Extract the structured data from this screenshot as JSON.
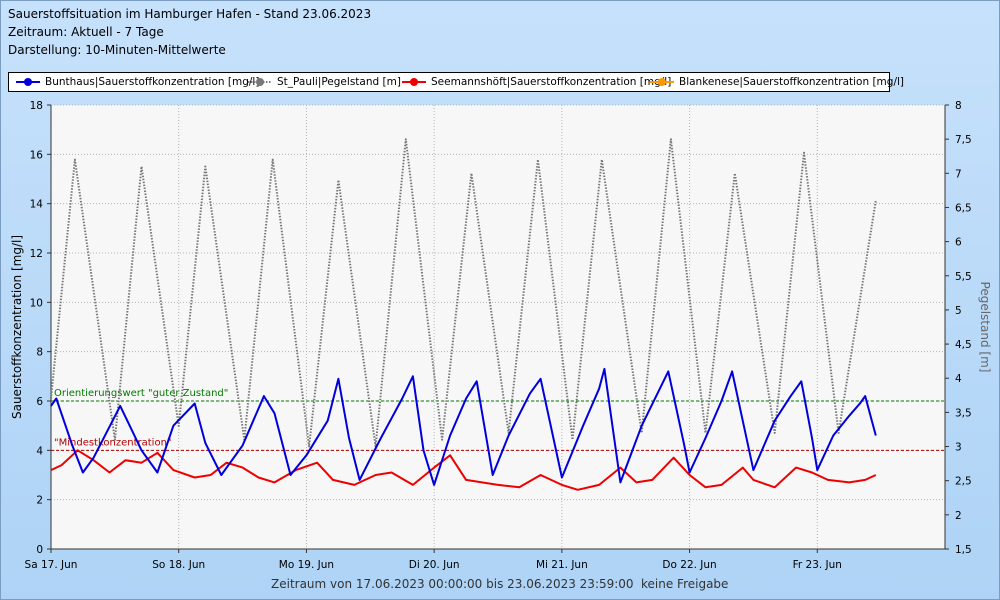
{
  "header": {
    "title": "Sauerstoffsituation im Hamburger Hafen - Stand 23.06.2023",
    "period": "Zeitraum: Aktuell - 7 Tage",
    "display": "Darstellung: 10-Minuten-Mittelwerte"
  },
  "footer": {
    "range": "Zeitraum von 17.06.2023 00:00:00 bis 23.06.2023 23:59:00",
    "release": "keine Freigabe"
  },
  "chart_data": {
    "type": "line",
    "xlabel": "",
    "ylabel": "Sauerstoffkonzentration [mg/l]",
    "y2label": "Pegelstand [m]",
    "ylim": [
      0,
      18
    ],
    "y2lim": [
      1.5,
      8
    ],
    "xlim": [
      "2023-06-17",
      "2023-06-24"
    ],
    "yticks": [
      "0",
      "2",
      "4",
      "6",
      "8",
      "10",
      "12",
      "14",
      "16",
      "18"
    ],
    "y2ticks": [
      "1,5",
      "2",
      "2,5",
      "3",
      "3,5",
      "4",
      "4,5",
      "5",
      "5,5",
      "6",
      "6,5",
      "7",
      "7,5",
      "8"
    ],
    "xticks": [
      {
        "x": "2023-06-17",
        "label": "Sa 17. Jun"
      },
      {
        "x": "2023-06-18",
        "label": "So 18. Jun"
      },
      {
        "x": "2023-06-19",
        "label": "Mo 19. Jun"
      },
      {
        "x": "2023-06-20",
        "label": "Di 20. Jun"
      },
      {
        "x": "2023-06-21",
        "label": "Mi 21. Jun"
      },
      {
        "x": "2023-06-22",
        "label": "Do 22. Jun"
      },
      {
        "x": "2023-06-23",
        "label": "Fr 23. Jun"
      }
    ],
    "grid": true,
    "legend_position": "top",
    "reference_lines": [
      {
        "label": "Orientierungswert \"guter Zustand\"",
        "y": 6,
        "color": "#007a00"
      },
      {
        "label": "\"Mindestkonzentration\"",
        "y": 4,
        "color": "#b00000"
      }
    ],
    "series": [
      {
        "name": "Bunthaus|Sauerstoffkonzentration [mg/l]",
        "axis": "left",
        "color": "#0000dd",
        "marker": "circle",
        "style": "solid",
        "points": [
          [
            "2023-06-17 00:00",
            5.8
          ],
          [
            "2023-06-17 01:00",
            6.1
          ],
          [
            "2023-06-17 04:00",
            4.2
          ],
          [
            "2023-06-17 06:00",
            3.1
          ],
          [
            "2023-06-17 08:00",
            3.7
          ],
          [
            "2023-06-17 13:00",
            5.8
          ],
          [
            "2023-06-17 17:00",
            4.0
          ],
          [
            "2023-06-17 20:00",
            3.1
          ],
          [
            "2023-06-17 23:00",
            5.0
          ],
          [
            "2023-06-18 03:00",
            5.9
          ],
          [
            "2023-06-18 05:00",
            4.3
          ],
          [
            "2023-06-18 08:00",
            3.0
          ],
          [
            "2023-06-18 12:00",
            4.2
          ],
          [
            "2023-06-18 16:00",
            6.2
          ],
          [
            "2023-06-18 18:00",
            5.5
          ],
          [
            "2023-06-18 21:00",
            3.0
          ],
          [
            "2023-06-19 00:00",
            3.8
          ],
          [
            "2023-06-19 04:00",
            5.2
          ],
          [
            "2023-06-19 06:00",
            6.9
          ],
          [
            "2023-06-19 08:00",
            4.5
          ],
          [
            "2023-06-19 10:00",
            2.8
          ],
          [
            "2023-06-19 14:00",
            4.5
          ],
          [
            "2023-06-19 18:00",
            6.1
          ],
          [
            "2023-06-19 20:00",
            7.0
          ],
          [
            "2023-06-19 22:00",
            4.0
          ],
          [
            "2023-06-20 00:00",
            2.6
          ],
          [
            "2023-06-20 03:00",
            4.6
          ],
          [
            "2023-06-20 06:00",
            6.1
          ],
          [
            "2023-06-20 08:00",
            6.8
          ],
          [
            "2023-06-20 11:00",
            3.0
          ],
          [
            "2023-06-20 14:00",
            4.6
          ],
          [
            "2023-06-20 18:00",
            6.3
          ],
          [
            "2023-06-20 20:00",
            6.9
          ],
          [
            "2023-06-21 00:00",
            2.9
          ],
          [
            "2023-06-21 04:00",
            5.0
          ],
          [
            "2023-06-21 07:00",
            6.5
          ],
          [
            "2023-06-21 08:00",
            7.3
          ],
          [
            "2023-06-21 11:00",
            2.7
          ],
          [
            "2023-06-21 15:00",
            5.0
          ],
          [
            "2023-06-21 20:00",
            7.2
          ],
          [
            "2023-06-21 23:00",
            4.2
          ],
          [
            "2023-06-22 00:00",
            3.1
          ],
          [
            "2023-06-22 03:00",
            4.5
          ],
          [
            "2023-06-22 06:00",
            6.0
          ],
          [
            "2023-06-22 08:00",
            7.2
          ],
          [
            "2023-06-22 12:00",
            3.2
          ],
          [
            "2023-06-22 16:00",
            5.2
          ],
          [
            "2023-06-22 19:00",
            6.2
          ],
          [
            "2023-06-22 21:00",
            6.8
          ],
          [
            "2023-06-22 23:00",
            4.5
          ],
          [
            "2023-06-23 00:00",
            3.2
          ],
          [
            "2023-06-23 03:00",
            4.6
          ],
          [
            "2023-06-23 06:00",
            5.4
          ],
          [
            "2023-06-23 08:00",
            5.9
          ],
          [
            "2023-06-23 09:00",
            6.2
          ],
          [
            "2023-06-23 11:00",
            4.6
          ]
        ]
      },
      {
        "name": "St_Pauli|Pegelstand [m]",
        "axis": "right",
        "color": "#777777",
        "marker": "circle",
        "style": "dotted",
        "points": [
          [
            "2023-06-17 00:00",
            3.7
          ],
          [
            "2023-06-17 04:30",
            7.2
          ],
          [
            "2023-06-17 12:00",
            3.1
          ],
          [
            "2023-06-17 17:00",
            7.1
          ],
          [
            "2023-06-18 00:00",
            3.3
          ],
          [
            "2023-06-18 05:00",
            7.1
          ],
          [
            "2023-06-18 12:20",
            3.1
          ],
          [
            "2023-06-18 17:40",
            7.2
          ],
          [
            "2023-06-19 00:30",
            3.0
          ],
          [
            "2023-06-19 06:00",
            6.9
          ],
          [
            "2023-06-19 13:00",
            3.0
          ],
          [
            "2023-06-19 18:40",
            7.5
          ],
          [
            "2023-06-20 01:30",
            3.1
          ],
          [
            "2023-06-20 07:00",
            7.0
          ],
          [
            "2023-06-20 14:00",
            3.2
          ],
          [
            "2023-06-20 19:30",
            7.2
          ],
          [
            "2023-06-21 02:00",
            3.1
          ],
          [
            "2023-06-21 07:30",
            7.2
          ],
          [
            "2023-06-21 15:00",
            3.2
          ],
          [
            "2023-06-21 20:30",
            7.5
          ],
          [
            "2023-06-22 03:00",
            3.2
          ],
          [
            "2023-06-22 08:30",
            7.0
          ],
          [
            "2023-06-22 16:00",
            3.2
          ],
          [
            "2023-06-22 21:30",
            7.3
          ],
          [
            "2023-06-23 04:00",
            3.2
          ],
          [
            "2023-06-23 11:00",
            6.6
          ]
        ]
      },
      {
        "name": "Seemannshöft|Sauerstoffkonzentration [mg/l]",
        "axis": "left",
        "color": "#ee0000",
        "marker": "circle",
        "style": "solid",
        "points": [
          [
            "2023-06-17 00:00",
            3.2
          ],
          [
            "2023-06-17 02:00",
            3.4
          ],
          [
            "2023-06-17 05:00",
            4.0
          ],
          [
            "2023-06-17 08:00",
            3.6
          ],
          [
            "2023-06-17 11:00",
            3.1
          ],
          [
            "2023-06-17 14:00",
            3.6
          ],
          [
            "2023-06-17 17:00",
            3.5
          ],
          [
            "2023-06-17 20:00",
            3.9
          ],
          [
            "2023-06-17 23:00",
            3.2
          ],
          [
            "2023-06-18 03:00",
            2.9
          ],
          [
            "2023-06-18 06:00",
            3.0
          ],
          [
            "2023-06-18 09:00",
            3.5
          ],
          [
            "2023-06-18 12:00",
            3.3
          ],
          [
            "2023-06-18 15:00",
            2.9
          ],
          [
            "2023-06-18 18:00",
            2.7
          ],
          [
            "2023-06-18 22:00",
            3.2
          ],
          [
            "2023-06-19 02:00",
            3.5
          ],
          [
            "2023-06-19 05:00",
            2.8
          ],
          [
            "2023-06-19 09:00",
            2.6
          ],
          [
            "2023-06-19 13:00",
            3.0
          ],
          [
            "2023-06-19 16:00",
            3.1
          ],
          [
            "2023-06-19 20:00",
            2.6
          ],
          [
            "2023-06-20 00:00",
            3.3
          ],
          [
            "2023-06-20 03:00",
            3.8
          ],
          [
            "2023-06-20 06:00",
            2.8
          ],
          [
            "2023-06-20 09:00",
            2.7
          ],
          [
            "2023-06-20 12:00",
            2.6
          ],
          [
            "2023-06-20 16:00",
            2.5
          ],
          [
            "2023-06-20 20:00",
            3.0
          ],
          [
            "2023-06-21 00:00",
            2.6
          ],
          [
            "2023-06-21 03:00",
            2.4
          ],
          [
            "2023-06-21 07:00",
            2.6
          ],
          [
            "2023-06-21 11:00",
            3.3
          ],
          [
            "2023-06-21 14:00",
            2.7
          ],
          [
            "2023-06-21 17:00",
            2.8
          ],
          [
            "2023-06-21 21:00",
            3.7
          ],
          [
            "2023-06-22 00:00",
            3.0
          ],
          [
            "2023-06-22 03:00",
            2.5
          ],
          [
            "2023-06-22 06:00",
            2.6
          ],
          [
            "2023-06-22 10:00",
            3.3
          ],
          [
            "2023-06-22 12:00",
            2.8
          ],
          [
            "2023-06-22 16:00",
            2.5
          ],
          [
            "2023-06-22 20:00",
            3.3
          ],
          [
            "2023-06-22 23:00",
            3.1
          ],
          [
            "2023-06-23 02:00",
            2.8
          ],
          [
            "2023-06-23 06:00",
            2.7
          ],
          [
            "2023-06-23 09:00",
            2.8
          ],
          [
            "2023-06-23 11:00",
            3.0
          ]
        ]
      },
      {
        "name": "Blankenese|Sauerstoffkonzentration [mg/l]",
        "axis": "left",
        "color": "#ff9900",
        "marker": "circle",
        "style": "solid",
        "points": []
      }
    ]
  }
}
